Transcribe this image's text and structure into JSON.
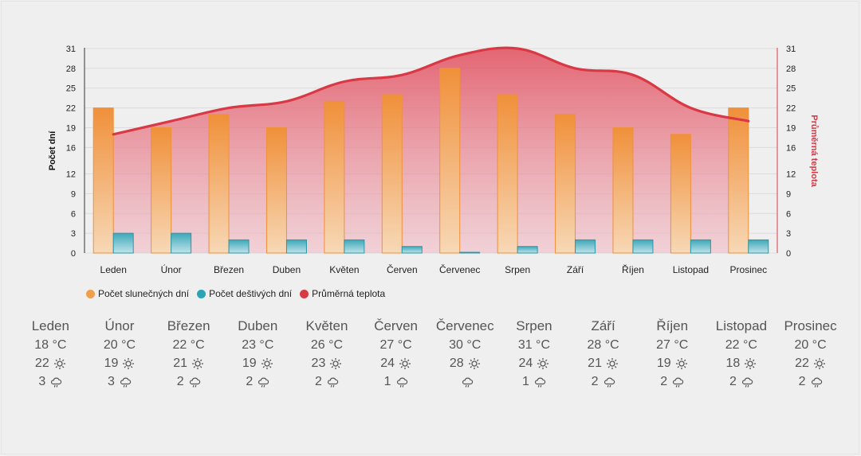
{
  "chart_data": {
    "type": "bar",
    "categories": [
      "Leden",
      "Únor",
      "Březen",
      "Duben",
      "Květen",
      "Červen",
      "Červenec",
      "Srpen",
      "Září",
      "Říjen",
      "Listopad",
      "Prosinec"
    ],
    "series": [
      {
        "name": "Počet slunečných dní",
        "type": "bar",
        "values": [
          22,
          19,
          21,
          19,
          23,
          24,
          28,
          24,
          21,
          19,
          18,
          22
        ],
        "color": "#f0a04b"
      },
      {
        "name": "Počet deštivých dní",
        "type": "bar",
        "values": [
          3,
          3,
          2,
          2,
          2,
          1,
          0,
          1,
          2,
          2,
          2,
          2
        ],
        "color": "#2aa4b5"
      },
      {
        "name": "Průměrná teplota",
        "type": "area-line",
        "values": [
          18,
          20,
          22,
          23,
          26,
          27,
          30,
          31,
          28,
          27,
          22,
          20
        ],
        "color": "#d93845"
      }
    ],
    "ylabel": "Počet dní",
    "y2label": "Průměrná teplota",
    "ylim": [
      0,
      31
    ],
    "yticks": [
      0,
      3,
      6,
      9,
      12,
      16,
      19,
      22,
      25,
      28,
      31
    ],
    "legend_position": "bottom-left",
    "grid": true
  },
  "legend": [
    {
      "label": "Počet slunečných dní",
      "color": "#f0a04b"
    },
    {
      "label": "Počet deštivých dní",
      "color": "#2aa4b5"
    },
    {
      "label": "Průměrná teplota",
      "color": "#d93845"
    }
  ],
  "table": [
    {
      "month": "Leden",
      "temp": "18 °C",
      "sun": "22",
      "rain": "3"
    },
    {
      "month": "Únor",
      "temp": "20 °C",
      "sun": "19",
      "rain": "3"
    },
    {
      "month": "Březen",
      "temp": "22 °C",
      "sun": "21",
      "rain": "2"
    },
    {
      "month": "Duben",
      "temp": "23 °C",
      "sun": "19",
      "rain": "2"
    },
    {
      "month": "Květen",
      "temp": "26 °C",
      "sun": "23",
      "rain": "2"
    },
    {
      "month": "Červen",
      "temp": "27 °C",
      "sun": "24",
      "rain": "1"
    },
    {
      "month": "Červenec",
      "temp": "30 °C",
      "sun": "28",
      "rain": ""
    },
    {
      "month": "Srpen",
      "temp": "31 °C",
      "sun": "24",
      "rain": "1"
    },
    {
      "month": "Září",
      "temp": "28 °C",
      "sun": "21",
      "rain": "2"
    },
    {
      "month": "Říjen",
      "temp": "27 °C",
      "sun": "19",
      "rain": "2"
    },
    {
      "month": "Listopad",
      "temp": "22 °C",
      "sun": "18",
      "rain": "2"
    },
    {
      "month": "Prosinec",
      "temp": "20 °C",
      "sun": "22",
      "rain": "2"
    }
  ],
  "icons": {
    "sun": "sun-icon",
    "rain": "rain-cloud-icon"
  }
}
